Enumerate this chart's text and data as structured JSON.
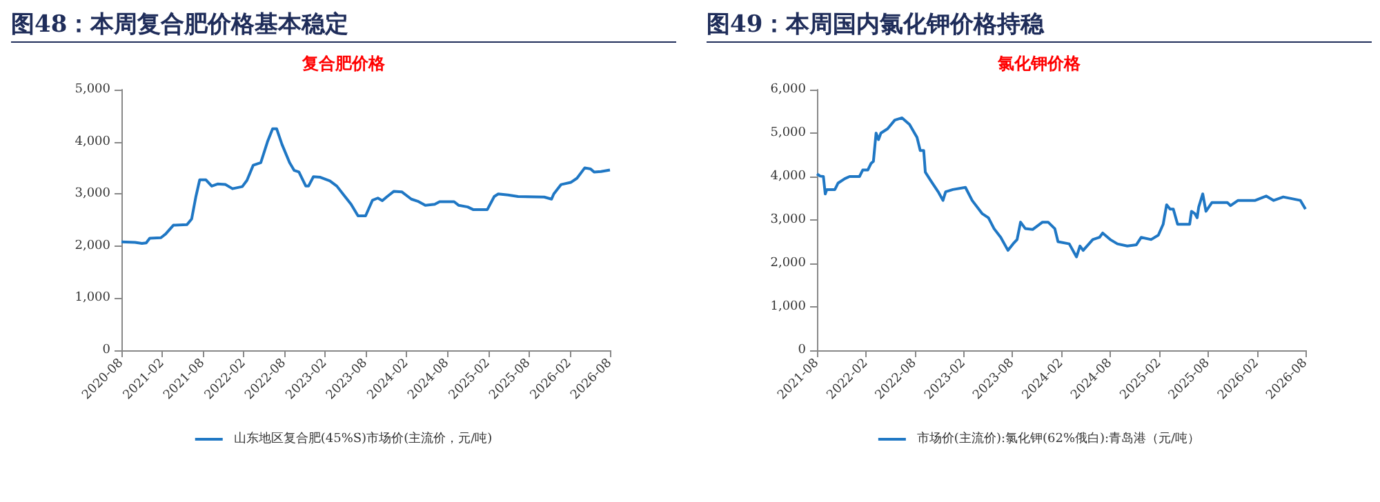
{
  "chart_data": [
    {
      "type": "line",
      "title": "图48：本周复合肥价格基本稳定",
      "subtitle": "复合肥价格",
      "x": [
        "2020-08-01",
        "2020-10-01",
        "2020-11-01",
        "2020-11-20",
        "2020-12-06",
        "2021-01-25",
        "2021-02-15",
        "2021-03-22",
        "2021-05-22",
        "2021-06-12",
        "2021-07-01",
        "2021-07-18",
        "2021-08-15",
        "2021-09-10",
        "2021-10-06",
        "2021-11-10",
        "2021-12-12",
        "2022-01-25",
        "2022-02-15",
        "2022-03-15",
        "2022-04-18",
        "2022-05-18",
        "2022-06-10",
        "2022-06-28",
        "2022-07-22",
        "2022-08-25",
        "2022-09-15",
        "2022-10-06",
        "2022-11-06",
        "2022-11-18",
        "2022-12-10",
        "2023-01-10",
        "2023-02-22",
        "2023-03-25",
        "2023-04-25",
        "2023-05-28",
        "2023-06-28",
        "2023-08-01",
        "2023-09-01",
        "2023-09-25",
        "2023-10-15",
        "2023-11-06",
        "2023-12-06",
        "2024-01-10",
        "2024-02-22",
        "2024-03-22",
        "2024-04-25",
        "2024-06-06",
        "2024-06-28",
        "2024-09-01",
        "2024-09-22",
        "2024-11-01",
        "2024-11-25",
        "2025-01-28",
        "2025-02-28",
        "2025-03-18",
        "2025-05-01",
        "2025-06-15",
        "2025-10-10",
        "2025-11-12",
        "2025-11-22",
        "2025-12-25",
        "2026-02-06",
        "2026-03-06",
        "2026-04-10",
        "2026-05-06",
        "2026-05-22",
        "2026-06-22",
        "2026-08-01"
      ],
      "series": [
        {
          "name": "山东地区复合肥(45%S)市场价(主流价，元/吨)",
          "color": "#1f77c4",
          "values": [
            2080,
            2070,
            2050,
            2060,
            2150,
            2160,
            2230,
            2400,
            2410,
            2520,
            2950,
            3270,
            3270,
            3150,
            3190,
            3180,
            3100,
            3140,
            3260,
            3550,
            3600,
            4000,
            4250,
            4250,
            3950,
            3600,
            3450,
            3420,
            3150,
            3150,
            3330,
            3320,
            3250,
            3150,
            2980,
            2800,
            2580,
            2580,
            2880,
            2920,
            2870,
            2950,
            3050,
            3040,
            2900,
            2860,
            2780,
            2800,
            2850,
            2850,
            2780,
            2750,
            2700,
            2700,
            2950,
            3000,
            2980,
            2950,
            2940,
            2900,
            3000,
            3180,
            3220,
            3300,
            3500,
            3480,
            3420,
            3430,
            3460
          ]
        }
      ],
      "xlim": [
        "2020-08-01",
        "2026-08-01"
      ],
      "xticks": [
        "2020-08",
        "2021-02",
        "2021-08",
        "2022-02",
        "2022-08",
        "2023-02",
        "2023-08",
        "2024-02",
        "2024-08",
        "2025-02",
        "2025-08",
        "2026-02",
        "2026-08"
      ],
      "ylim": [
        0,
        5000
      ],
      "yticks": [
        0,
        {
          "value": 1000,
          "label": "1,000"
        },
        {
          "value": 2000,
          "label": "2,000"
        },
        {
          "value": 3000,
          "label": "3,000"
        },
        {
          "value": 4000,
          "label": "4,000"
        },
        {
          "value": 5000,
          "label": "5,000"
        }
      ],
      "legend": "bottom"
    },
    {
      "type": "line",
      "title": "图49：本周国内氯化钾价格持稳",
      "subtitle": "氯化钾价格",
      "x": [
        "2021-08-01",
        "2021-08-13",
        "2021-08-25",
        "2021-09-01",
        "2021-09-07",
        "2021-10-07",
        "2021-10-19",
        "2021-11-13",
        "2021-12-01",
        "2022-01-07",
        "2022-01-19",
        "2022-02-07",
        "2022-02-19",
        "2022-02-28",
        "2022-03-10",
        "2022-03-19",
        "2022-03-28",
        "2022-04-22",
        "2022-05-19",
        "2022-06-15",
        "2022-07-13",
        "2022-08-10",
        "2022-08-22",
        "2022-09-04",
        "2022-09-10",
        "2022-10-01",
        "2022-10-28",
        "2022-11-15",
        "2022-11-25",
        "2022-12-22",
        "2023-02-07",
        "2023-03-04",
        "2023-04-10",
        "2023-05-04",
        "2023-05-25",
        "2023-06-19",
        "2023-07-16",
        "2023-08-04",
        "2023-08-19",
        "2023-09-01",
        "2023-09-19",
        "2023-10-16",
        "2023-11-22",
        "2023-12-13",
        "2024-01-07",
        "2024-01-19",
        "2024-03-01",
        "2024-03-28",
        "2024-04-10",
        "2024-04-22",
        "2024-05-28",
        "2024-06-22",
        "2024-07-04",
        "2024-08-01",
        "2024-08-28",
        "2024-10-04",
        "2024-11-07",
        "2024-11-25",
        "2025-01-01",
        "2025-01-28",
        "2025-02-15",
        "2025-02-28",
        "2025-03-13",
        "2025-03-25",
        "2025-04-10",
        "2025-05-25",
        "2025-06-01",
        "2025-06-13",
        "2025-06-22",
        "2025-06-28",
        "2025-07-13",
        "2025-07-25",
        "2025-08-16",
        "2025-09-19",
        "2025-10-13",
        "2025-10-25",
        "2025-11-22",
        "2026-01-25",
        "2026-03-07",
        "2026-04-04",
        "2026-05-10",
        "2026-07-13",
        "2026-08-01"
      ],
      "series": [
        {
          "name": "市场价(主流价):氯化钾(62%俄白):青岛港（元/吨）",
          "color": "#1f77c4",
          "values": [
            4060,
            4010,
            4000,
            3600,
            3700,
            3700,
            3850,
            3950,
            4000,
            4000,
            4150,
            4150,
            4300,
            4350,
            5000,
            4850,
            5000,
            5100,
            5300,
            5350,
            5200,
            4900,
            4600,
            4600,
            4100,
            3900,
            3650,
            3450,
            3650,
            3700,
            3750,
            3450,
            3150,
            3050,
            2800,
            2600,
            2300,
            2450,
            2550,
            2950,
            2800,
            2780,
            2950,
            2950,
            2800,
            2500,
            2450,
            2150,
            2400,
            2300,
            2550,
            2600,
            2700,
            2550,
            2450,
            2400,
            2430,
            2600,
            2550,
            2650,
            2900,
            3350,
            3250,
            3250,
            2900,
            2900,
            3200,
            3150,
            3050,
            3300,
            3600,
            3200,
            3400,
            3400,
            3400,
            3330,
            3450,
            3450,
            3550,
            3450,
            3530,
            3450,
            3250
          ]
        }
      ],
      "xlim": [
        "2021-08-01",
        "2026-08-01"
      ],
      "xticks": [
        "2021-08",
        "2022-02",
        "2022-08",
        "2023-02",
        "2023-08",
        "2024-02",
        "2024-08",
        "2025-02",
        "2025-08",
        "2026-02",
        "2026-08"
      ],
      "ylim": [
        0,
        6000
      ],
      "yticks": [
        0,
        {
          "value": 1000,
          "label": "1,000"
        },
        {
          "value": 2000,
          "label": "2,000"
        },
        {
          "value": 3000,
          "label": "3,000"
        },
        {
          "value": 4000,
          "label": "4,000"
        },
        {
          "value": 5000,
          "label": "5,000"
        },
        {
          "value": 6000,
          "label": "6,000"
        }
      ],
      "legend": "bottom"
    }
  ]
}
